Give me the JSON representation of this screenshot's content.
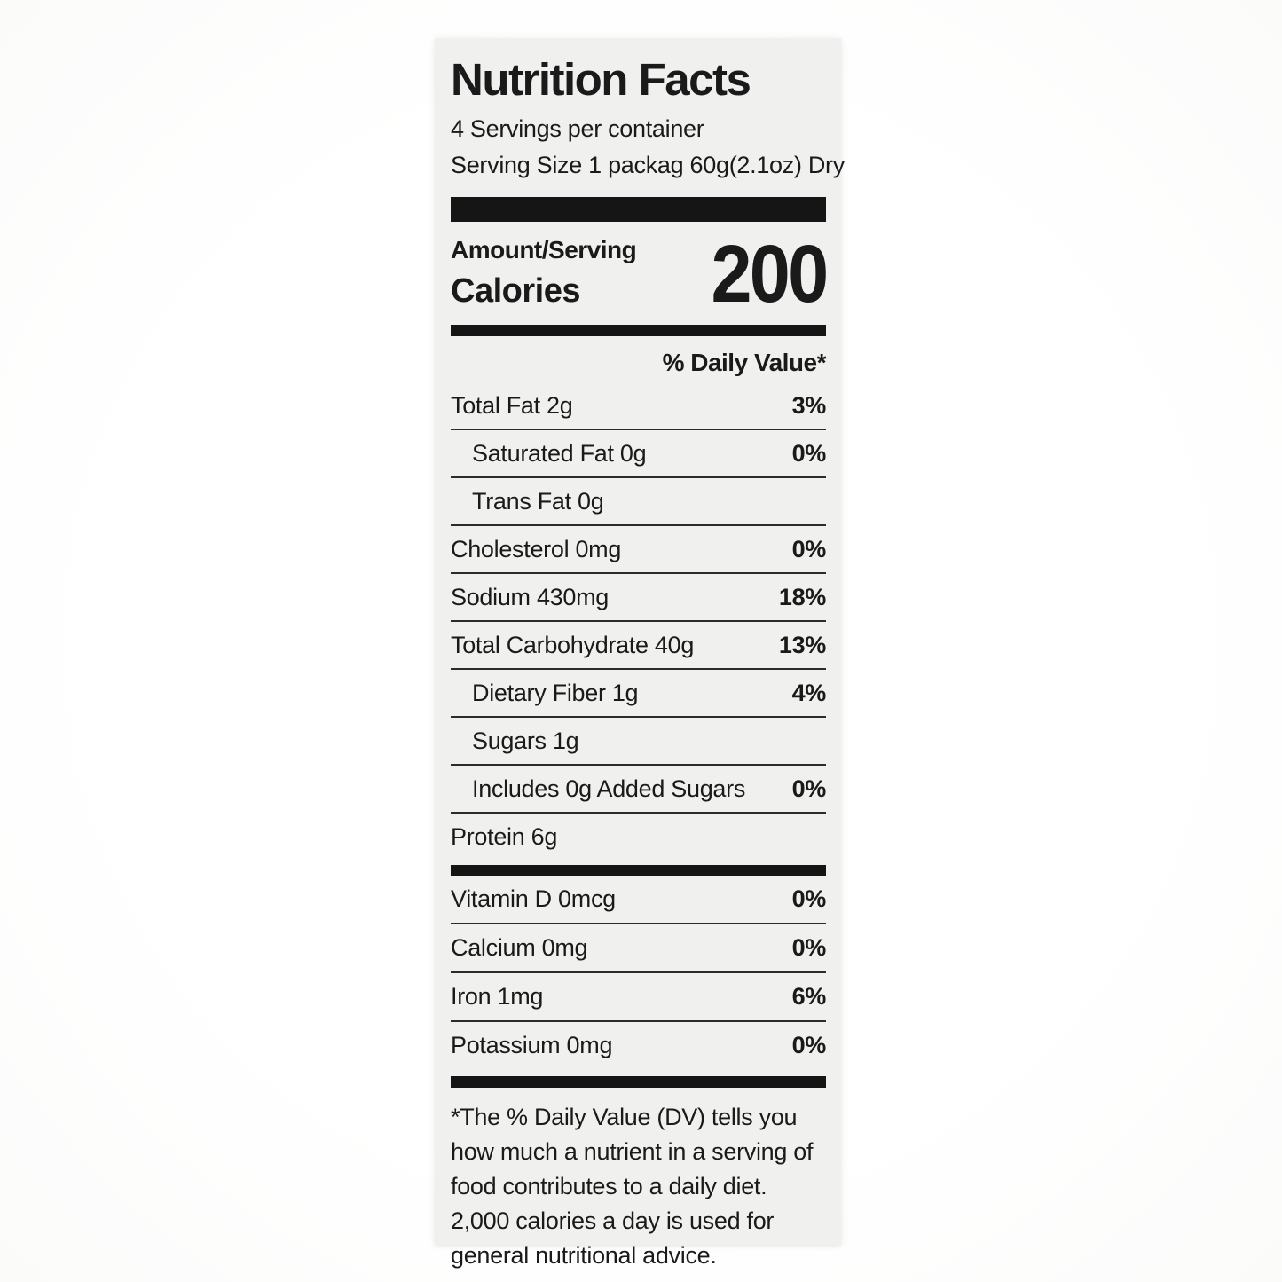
{
  "label": {
    "title": "Nutrition Facts",
    "servings_per_container": "4 Servings per container",
    "serving_size": "Serving Size 1 packag 60g(2.1oz) Dry",
    "amount_per_serving_label": "Amount/Serving",
    "calories_label": "Calories",
    "calories_value": "200",
    "daily_value_header": "% Daily Value*",
    "nutrients": [
      {
        "name": "Total Fat 2g",
        "dv": "3%"
      },
      {
        "name": "Saturated Fat 0g",
        "dv": "0%"
      },
      {
        "name": "Trans Fat 0g",
        "dv": ""
      },
      {
        "name": "Cholesterol 0mg",
        "dv": "0%"
      },
      {
        "name": "Sodium 430mg",
        "dv": "18%"
      },
      {
        "name": "Total Carbohydrate 40g",
        "dv": "13%"
      },
      {
        "name": "Dietary Fiber 1g",
        "dv": "4%"
      },
      {
        "name": "Sugars 1g",
        "dv": ""
      },
      {
        "name": "Includes 0g Added Sugars",
        "dv": "0%"
      },
      {
        "name": "Protein 6g",
        "dv": ""
      }
    ],
    "micronutrients": [
      {
        "name": "Vitamin D 0mcg",
        "dv": "0%"
      },
      {
        "name": "Calcium 0mg",
        "dv": "0%"
      },
      {
        "name": "Iron 1mg",
        "dv": "6%"
      },
      {
        "name": "Potassium 0mg",
        "dv": "0%"
      }
    ],
    "footnote": "*The % Daily Value (DV) tells you how much a nutrient in a serving of food contributes to a daily diet. 2,000 calories a day is used for general nutritional advice."
  },
  "colors": {
    "text": "#1a1a1a",
    "bars": "#151515",
    "label_background": "#f0f0ee",
    "page_background": "#ffffff"
  }
}
